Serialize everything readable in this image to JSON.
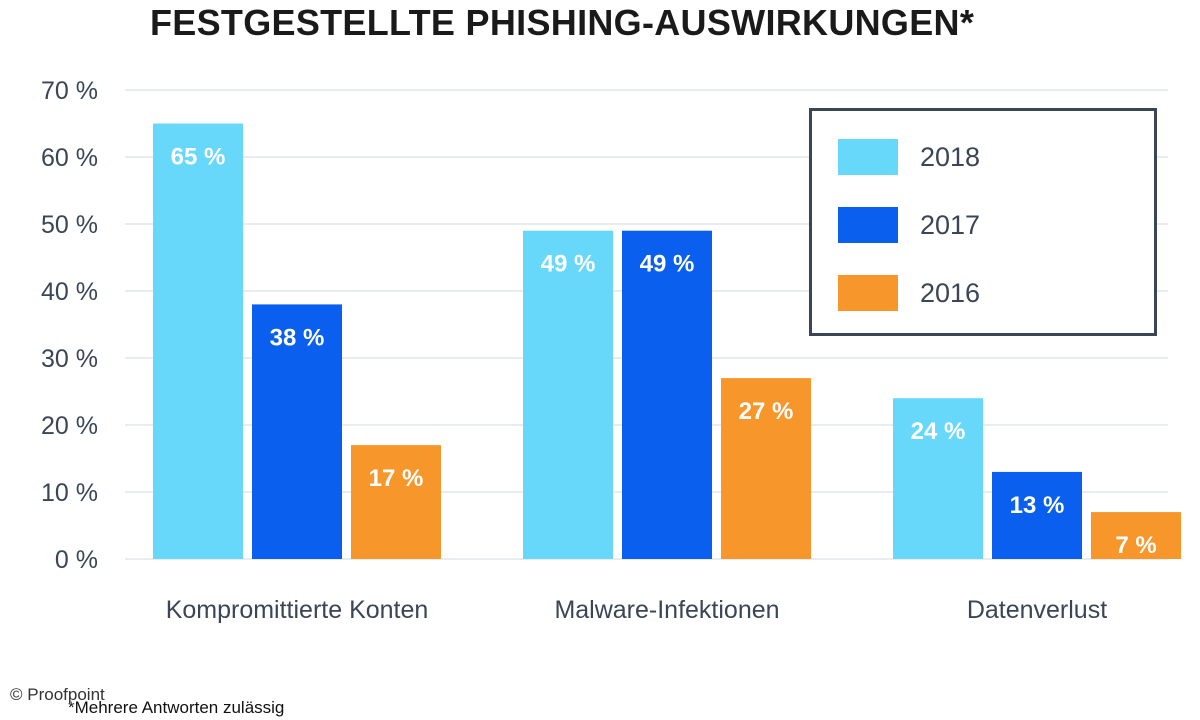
{
  "chart_data": {
    "type": "bar",
    "title": "FESTGESTELLTE PHISHING-AUSWIRKUNGEN*",
    "categories": [
      "Kompromittierte Konten",
      "Malware-Infektionen",
      "Datenverlust"
    ],
    "series": [
      {
        "name": "2018",
        "color": "#67d8fa",
        "values": [
          65,
          49,
          24
        ],
        "labels": [
          "65 %",
          "49 %",
          "24 %"
        ]
      },
      {
        "name": "2017",
        "color": "#0b5fef",
        "values": [
          38,
          49,
          13
        ],
        "labels": [
          "38 %",
          "49 %",
          "13 %"
        ]
      },
      {
        "name": "2016",
        "color": "#f7962a",
        "values": [
          17,
          27,
          7
        ],
        "labels": [
          "17 %",
          "27 %",
          "7 %"
        ]
      }
    ],
    "ylim": [
      0,
      70
    ],
    "yticks": [
      "0 %",
      "10 %",
      "20 %",
      "30 %",
      "40 %",
      "50 %",
      "60 %",
      "70 %"
    ],
    "grid": true,
    "legend_position": "top-right"
  },
  "footnote": "*Mehrere Antworten zulässig",
  "credit": "© Proofpoint"
}
